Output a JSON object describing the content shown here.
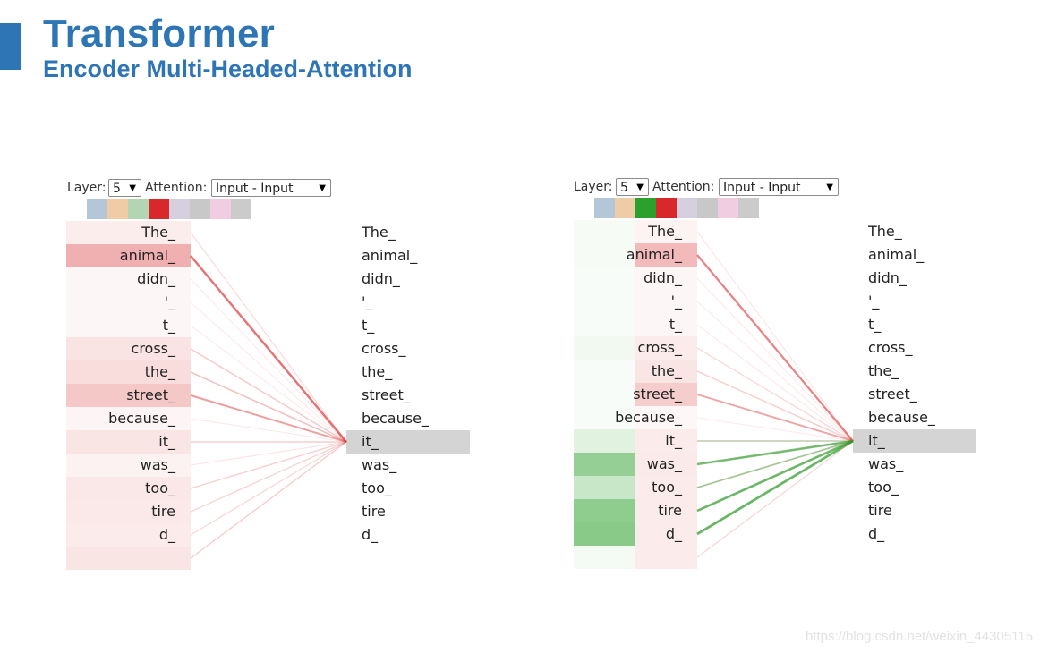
{
  "header": {
    "title": "Transformer",
    "subtitle": "Encoder Multi-Headed-Attention"
  },
  "watermark": "https://blog.csdn.net/weixin_44305115",
  "colors": {
    "accent": "#2e75b6",
    "head_swatches": [
      "#b3c7d9",
      "#f0cca6",
      "#b4d5b4",
      "#d9282c",
      "#d6cfe0",
      "#c8c8c8",
      "#f0cde0",
      "#cbcbcb"
    ],
    "head_swatches_right": [
      "#b3c7d9",
      "#f0cca6",
      "#2ca02c",
      "#d9282c",
      "#d6cfe0",
      "#c8c8c8",
      "#f0cde0",
      "#cbcbcb"
    ]
  },
  "tokens": [
    "The_",
    "animal_",
    "didn_",
    "'_",
    "t_",
    "cross_",
    "the_",
    "street_",
    "because_",
    "it_",
    "was_",
    "too_",
    "tire",
    "d_",
    ""
  ],
  "selected_index": 9,
  "panels": [
    {
      "layer_label": "Layer:",
      "layer_value": "5",
      "attention_label": "Attention:",
      "attention_value": "Input - Input",
      "red_weights": [
        0.12,
        0.75,
        0.03,
        0.03,
        0.03,
        0.22,
        0.28,
        0.5,
        0.04,
        0.2,
        0.06,
        0.18,
        0.16,
        0.14,
        0.2
      ],
      "green_weights": []
    },
    {
      "layer_label": "Layer:",
      "layer_value": "5",
      "attention_label": "Attention:",
      "attention_value": "Input - Input",
      "red_weights": [
        0.05,
        0.65,
        0.03,
        0.03,
        0.03,
        0.14,
        0.2,
        0.45,
        0.02,
        0.14,
        0.15,
        0.14,
        0.14,
        0.14,
        0.14
      ],
      "green_weights": [
        0.04,
        0.04,
        0.02,
        0.02,
        0.02,
        0.08,
        0.02,
        0.02,
        0.02,
        0.2,
        0.8,
        0.4,
        0.85,
        0.9,
        0.05
      ]
    }
  ]
}
